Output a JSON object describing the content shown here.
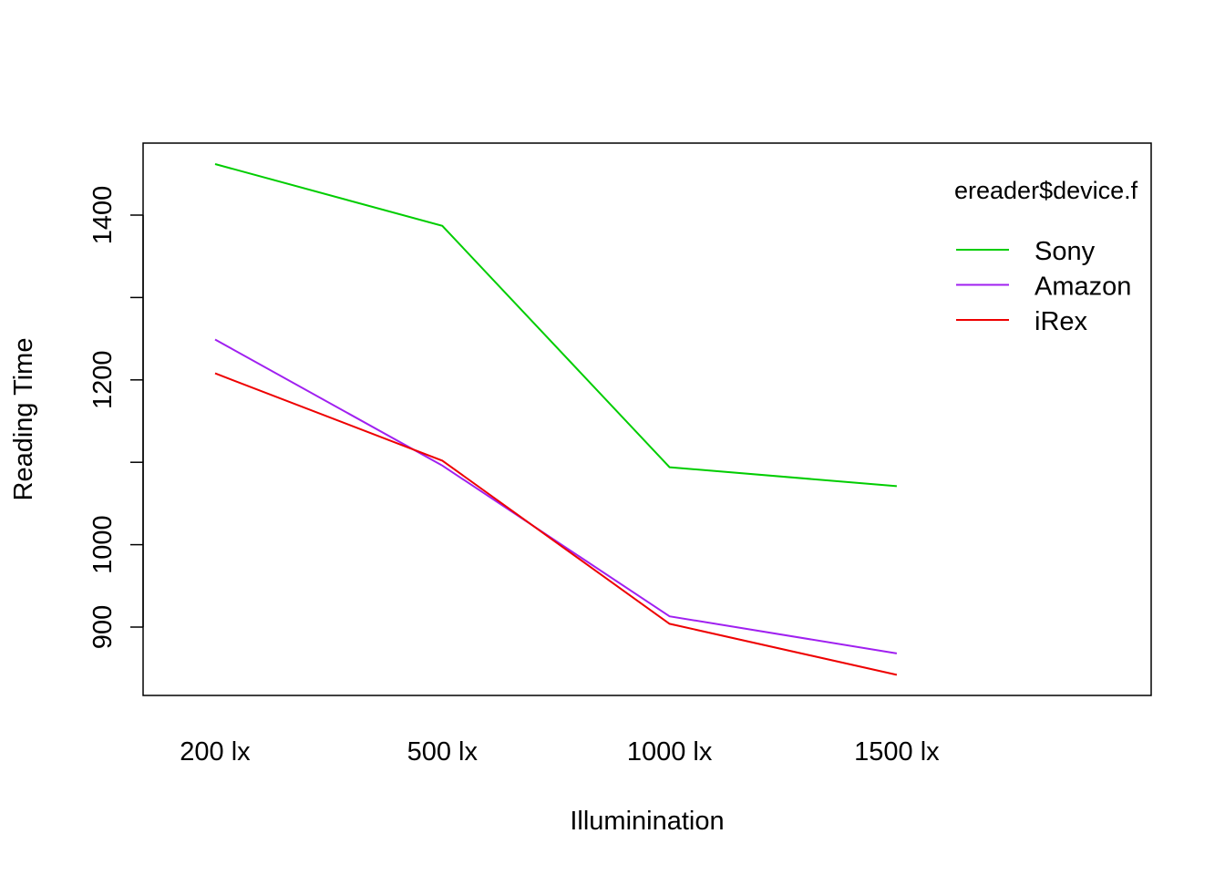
{
  "chart_data": {
    "type": "line",
    "xlabel": "Illuminination",
    "ylabel": "Reading Time",
    "categories": [
      "200 lx",
      "500 lx",
      "1000 lx",
      "1500 lx"
    ],
    "y_ticks": [
      900,
      1000,
      1200,
      1400
    ],
    "y_minor_ticks": [
      1100,
      1300
    ],
    "ylim": [
      817,
      1487
    ],
    "grid": false,
    "legend": {
      "title": "ereader$device.f",
      "placement": "top-right"
    },
    "series": [
      {
        "name": "Sony",
        "color": "#00cd00",
        "values": [
          1462,
          1387,
          1094,
          1071
        ]
      },
      {
        "name": "Amazon",
        "color": "#a020f0",
        "values": [
          1249,
          1096,
          913,
          868
        ]
      },
      {
        "name": "iRex",
        "color": "#ee0000",
        "values": [
          1208,
          1102,
          904,
          842
        ]
      }
    ]
  }
}
